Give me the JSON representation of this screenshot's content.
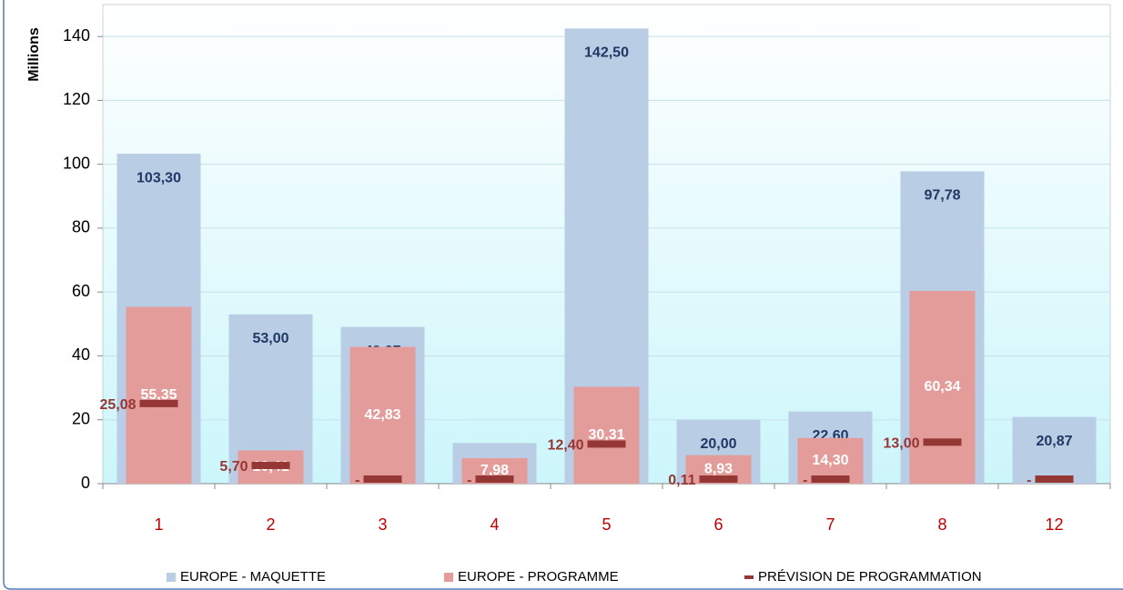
{
  "chart_data": {
    "type": "bar",
    "y_label": "Millions",
    "categories": [
      "1",
      "2",
      "3",
      "4",
      "5",
      "6",
      "7",
      "8",
      "12"
    ],
    "ylim": [
      0,
      150
    ],
    "yticks": [
      0,
      20,
      40,
      60,
      80,
      100,
      120,
      140
    ],
    "series": [
      {
        "name": "EUROPE - MAQUETTE",
        "style": "bar",
        "color": "#b9cde5",
        "values": [
          103.3,
          53.0,
          49.07,
          12.72,
          142.5,
          20.0,
          22.6,
          97.78,
          20.87
        ],
        "value_labels": [
          "103,30",
          "53,00",
          "49,07",
          "12,72",
          "142,50",
          "20,00",
          "22,60",
          "97,78",
          "20,87"
        ]
      },
      {
        "name": "EUROPE - PROGRAMME",
        "style": "bar",
        "color": "#e39c9a",
        "values": [
          55.35,
          10.41,
          42.83,
          7.98,
          30.31,
          8.93,
          14.3,
          60.34,
          null
        ],
        "value_labels": [
          "55,35",
          "10,41",
          "42,83",
          "7,98",
          "30,31",
          "8,93",
          "14,30",
          "60,34",
          null
        ]
      },
      {
        "name": "PRÉVISION DE PROGRAMMATION",
        "style": "marker",
        "color": "#953735",
        "values": [
          25.08,
          5.7,
          0,
          0,
          12.4,
          0.11,
          0,
          13.0,
          0
        ],
        "value_labels": [
          "25,08",
          "5,70",
          "-",
          "-",
          "12,40",
          "0,11",
          "-",
          "13,00",
          "-"
        ]
      }
    ]
  }
}
